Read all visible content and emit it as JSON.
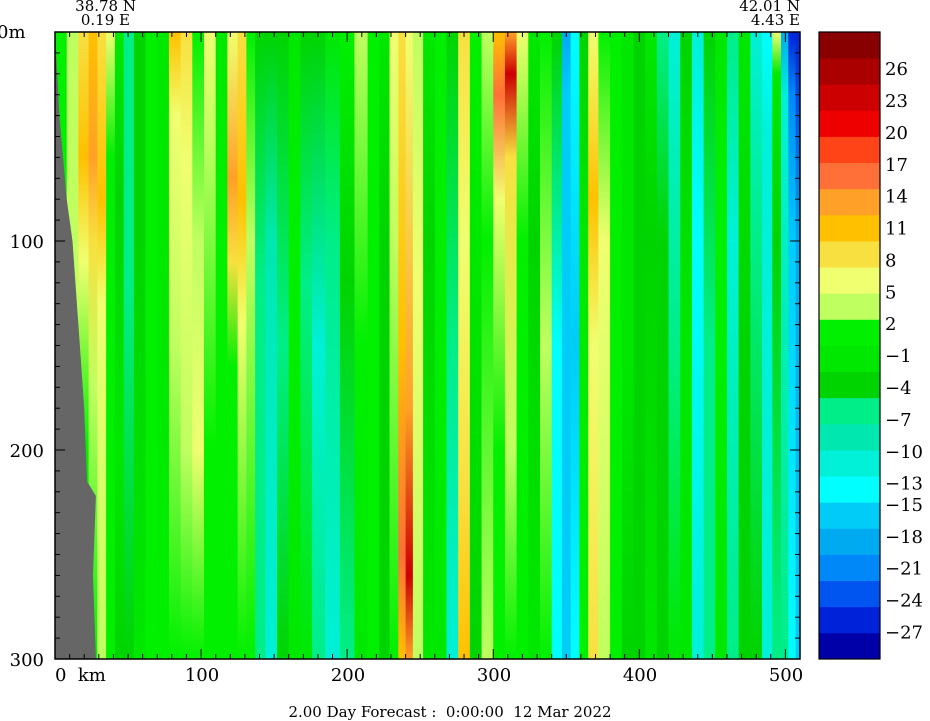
{
  "chart_data": {
    "type": "heatmap",
    "title": "",
    "xlabel": "",
    "ylabel": "",
    "footer": "2.00 Day Forecast :  0:00:00  12 Mar 2022",
    "start_lat": "38.78 N",
    "start_lon": "0.19 E",
    "end_lat": "42.01 N",
    "end_lon": "4.43 E",
    "x_unit": "km",
    "y_unit": "m",
    "xlim": [
      0,
      510
    ],
    "ylim": [
      0,
      300
    ],
    "y_inverted": true,
    "x_ticks": [
      0,
      100,
      200,
      300,
      400,
      500
    ],
    "x_tick_labels": [
      "0  km",
      "100",
      "200",
      "300",
      "400",
      "500"
    ],
    "y_ticks": [
      0,
      100,
      200,
      300
    ],
    "y_tick_labels": [
      "0m",
      "100",
      "200",
      "300"
    ],
    "colorbar": {
      "min": -29.5,
      "max": 29.5,
      "labels": [
        26,
        23,
        20,
        17,
        14,
        11,
        8,
        5,
        2,
        -1,
        -4,
        -7,
        -10,
        -13,
        -15,
        -18,
        -21,
        -24,
        -27
      ],
      "colors": [
        "#0000a8",
        "#0022d8",
        "#0055f0",
        "#0088f8",
        "#00aaf0",
        "#00ccf8",
        "#00ffff",
        "#00f0d8",
        "#00e8b0",
        "#00ee88",
        "#00d400",
        "#00e800",
        "#00f000",
        "#c0ff60",
        "#f0ff70",
        "#f8e040",
        "#ffc000",
        "#ffa028",
        "#ff7038",
        "#ff4418",
        "#ee0000",
        "#cc0000",
        "#aa0000",
        "#880000"
      ]
    },
    "bottom_land_km": [
      [
        0,
        0
      ],
      [
        3,
        40
      ],
      [
        8,
        80
      ],
      [
        12,
        100
      ],
      [
        16,
        140
      ],
      [
        20,
        180
      ],
      [
        22,
        215
      ],
      [
        28,
        222
      ],
      [
        26,
        260
      ],
      [
        28,
        300
      ]
    ],
    "columns": [
      {
        "x": 4,
        "profile": [
          [
            "0",
            2
          ],
          [
            "50",
            2
          ],
          [
            "300",
            2
          ]
        ]
      },
      {
        "x": 12,
        "profile": [
          [
            "0",
            3
          ],
          [
            "300",
            3
          ]
        ]
      },
      {
        "x": 20,
        "profile": [
          [
            "0",
            8
          ],
          [
            "60",
            12
          ],
          [
            "110",
            5
          ],
          [
            "200",
            2
          ],
          [
            "300",
            2
          ]
        ]
      },
      {
        "x": 26,
        "profile": [
          [
            "0",
            11
          ],
          [
            "60",
            14
          ],
          [
            "100",
            8
          ],
          [
            "170",
            3
          ],
          [
            "300",
            2
          ]
        ]
      },
      {
        "x": 32,
        "profile": [
          [
            "0",
            8
          ],
          [
            "80",
            11
          ],
          [
            "130",
            5
          ],
          [
            "300",
            3
          ]
        ]
      },
      {
        "x": 38,
        "profile": [
          [
            "0",
            5
          ],
          [
            "60",
            2
          ],
          [
            "200",
            2
          ],
          [
            "300",
            2
          ]
        ]
      },
      {
        "x": 44,
        "profile": [
          [
            "0",
            -2
          ],
          [
            "80",
            -4
          ],
          [
            "200",
            -2
          ],
          [
            "300",
            -4
          ]
        ]
      },
      {
        "x": 50,
        "profile": [
          [
            "0",
            -5
          ],
          [
            "120",
            -7
          ],
          [
            "300",
            -4
          ]
        ]
      },
      {
        "x": 58,
        "profile": [
          [
            "0",
            -3
          ],
          [
            "100",
            -4
          ],
          [
            "300",
            -2
          ]
        ]
      },
      {
        "x": 66,
        "profile": [
          [
            "0",
            2
          ],
          [
            "100",
            2
          ],
          [
            "300",
            2
          ]
        ]
      },
      {
        "x": 74,
        "profile": [
          [
            "0",
            -1
          ],
          [
            "150",
            -2
          ],
          [
            "300",
            0
          ]
        ]
      },
      {
        "x": 82,
        "profile": [
          [
            "0",
            11
          ],
          [
            "40",
            5
          ],
          [
            "150",
            3
          ],
          [
            "300",
            2
          ]
        ]
      },
      {
        "x": 90,
        "profile": [
          [
            "0",
            8
          ],
          [
            "60",
            5
          ],
          [
            "200",
            3
          ],
          [
            "300",
            2
          ]
        ]
      },
      {
        "x": 98,
        "profile": [
          [
            "0",
            2
          ],
          [
            "100",
            3
          ],
          [
            "200",
            5
          ],
          [
            "300",
            2
          ]
        ]
      },
      {
        "x": 106,
        "profile": [
          [
            "0",
            5
          ],
          [
            "50",
            3
          ],
          [
            "200",
            2
          ],
          [
            "300",
            1
          ]
        ]
      },
      {
        "x": 114,
        "profile": [
          [
            "0",
            -2
          ],
          [
            "100",
            2
          ],
          [
            "300",
            2
          ]
        ]
      },
      {
        "x": 122,
        "profile": [
          [
            "0",
            5
          ],
          [
            "70",
            14
          ],
          [
            "110",
            8
          ],
          [
            "160",
            2
          ],
          [
            "300",
            2
          ]
        ]
      },
      {
        "x": 128,
        "profile": [
          [
            "0",
            8
          ],
          [
            "80",
            11
          ],
          [
            "140",
            5
          ],
          [
            "300",
            2
          ]
        ]
      },
      {
        "x": 134,
        "profile": [
          [
            "0",
            2
          ],
          [
            "100",
            3
          ],
          [
            "300",
            2
          ]
        ]
      },
      {
        "x": 140,
        "profile": [
          [
            "0",
            -4
          ],
          [
            "120",
            -7
          ],
          [
            "300",
            -5
          ]
        ]
      },
      {
        "x": 148,
        "profile": [
          [
            "0",
            -3
          ],
          [
            "100",
            -8
          ],
          [
            "300",
            -10
          ]
        ]
      },
      {
        "x": 156,
        "profile": [
          [
            "0",
            -4
          ],
          [
            "150",
            -7
          ],
          [
            "300",
            -4
          ]
        ]
      },
      {
        "x": 164,
        "profile": [
          [
            "0",
            -1
          ],
          [
            "100",
            2
          ],
          [
            "300",
            -1
          ]
        ]
      },
      {
        "x": 172,
        "profile": [
          [
            "0",
            -4
          ],
          [
            "120",
            -5
          ],
          [
            "300",
            -2
          ]
        ]
      },
      {
        "x": 180,
        "profile": [
          [
            "0",
            -4
          ],
          [
            "150",
            -10
          ],
          [
            "300",
            -7
          ]
        ]
      },
      {
        "x": 190,
        "profile": [
          [
            "0",
            -1
          ],
          [
            "100",
            -7
          ],
          [
            "300",
            -10
          ]
        ]
      },
      {
        "x": 200,
        "profile": [
          [
            "0",
            2
          ],
          [
            "120",
            -3
          ],
          [
            "300",
            -5
          ]
        ]
      },
      {
        "x": 210,
        "profile": [
          [
            "0",
            3
          ],
          [
            "150",
            2
          ],
          [
            "300",
            -1
          ]
        ]
      },
      {
        "x": 218,
        "profile": [
          [
            "0",
            2
          ],
          [
            "100",
            2
          ],
          [
            "300",
            1
          ]
        ]
      },
      {
        "x": 226,
        "profile": [
          [
            "0",
            -2
          ],
          [
            "100",
            -4
          ],
          [
            "300",
            -4
          ]
        ]
      },
      {
        "x": 232,
        "profile": [
          [
            "0",
            5
          ],
          [
            "100",
            3
          ],
          [
            "300",
            2
          ]
        ]
      },
      {
        "x": 238,
        "profile": [
          [
            "0",
            8
          ],
          [
            "150",
            11
          ],
          [
            "250",
            17
          ],
          [
            "300",
            11
          ]
        ]
      },
      {
        "x": 242,
        "profile": [
          [
            "0",
            5
          ],
          [
            "180",
            14
          ],
          [
            "260",
            23
          ],
          [
            "300",
            14
          ]
        ]
      },
      {
        "x": 248,
        "profile": [
          [
            "0",
            3
          ],
          [
            "120",
            5
          ],
          [
            "300",
            3
          ]
        ]
      },
      {
        "x": 256,
        "profile": [
          [
            "0",
            -1
          ],
          [
            "100",
            -4
          ],
          [
            "300",
            -2
          ]
        ]
      },
      {
        "x": 264,
        "profile": [
          [
            "0",
            2
          ],
          [
            "100",
            2
          ],
          [
            "300",
            -1
          ]
        ]
      },
      {
        "x": 272,
        "profile": [
          [
            "0",
            -4
          ],
          [
            "150",
            -7
          ],
          [
            "300",
            -10
          ]
        ]
      },
      {
        "x": 280,
        "profile": [
          [
            "0",
            8
          ],
          [
            "100",
            5
          ],
          [
            "220",
            8
          ],
          [
            "300",
            11
          ]
        ]
      },
      {
        "x": 288,
        "profile": [
          [
            "0",
            2
          ],
          [
            "100",
            -1
          ],
          [
            "300",
            -4
          ]
        ]
      },
      {
        "x": 296,
        "profile": [
          [
            "0",
            3
          ],
          [
            "100",
            2
          ],
          [
            "300",
            3
          ]
        ]
      },
      {
        "x": 304,
        "profile": [
          [
            "0",
            11
          ],
          [
            "30",
            17
          ],
          [
            "80",
            5
          ],
          [
            "200",
            2
          ],
          [
            "300",
            2
          ]
        ]
      },
      {
        "x": 312,
        "profile": [
          [
            "0",
            14
          ],
          [
            "20",
            23
          ],
          [
            "60",
            8
          ],
          [
            "200",
            3
          ],
          [
            "300",
            2
          ]
        ]
      },
      {
        "x": 320,
        "profile": [
          [
            "0",
            5
          ],
          [
            "100",
            2
          ],
          [
            "300",
            2
          ]
        ]
      },
      {
        "x": 328,
        "profile": [
          [
            "0",
            -1
          ],
          [
            "100",
            -4
          ],
          [
            "300",
            -2
          ]
        ]
      },
      {
        "x": 336,
        "profile": [
          [
            "0",
            2
          ],
          [
            "150",
            3
          ],
          [
            "300",
            2
          ]
        ]
      },
      {
        "x": 344,
        "profile": [
          [
            "0",
            -4
          ],
          [
            "150",
            -13
          ],
          [
            "300",
            -13
          ]
        ]
      },
      {
        "x": 350,
        "profile": [
          [
            "0",
            -18
          ],
          [
            "30",
            -15
          ],
          [
            "150",
            -15
          ],
          [
            "300",
            -15
          ]
        ]
      },
      {
        "x": 356,
        "profile": [
          [
            "0",
            -13
          ],
          [
            "150",
            -15
          ],
          [
            "300",
            -13
          ]
        ]
      },
      {
        "x": 362,
        "profile": [
          [
            "0",
            -4
          ],
          [
            "100",
            -1
          ],
          [
            "300",
            2
          ]
        ]
      },
      {
        "x": 368,
        "profile": [
          [
            "0",
            5
          ],
          [
            "80",
            11
          ],
          [
            "150",
            5
          ],
          [
            "300",
            8
          ]
        ]
      },
      {
        "x": 376,
        "profile": [
          [
            "0",
            2
          ],
          [
            "100",
            5
          ],
          [
            "300",
            3
          ]
        ]
      },
      {
        "x": 384,
        "profile": [
          [
            "0",
            2
          ],
          [
            "100",
            2
          ],
          [
            "300",
            2
          ]
        ]
      },
      {
        "x": 392,
        "profile": [
          [
            "0",
            -1
          ],
          [
            "150",
            -1
          ],
          [
            "300",
            -3
          ]
        ]
      },
      {
        "x": 400,
        "profile": [
          [
            "0",
            -4
          ],
          [
            "150",
            -4
          ],
          [
            "300",
            -4
          ]
        ]
      },
      {
        "x": 408,
        "profile": [
          [
            "0",
            -2
          ],
          [
            "100",
            -4
          ],
          [
            "300",
            -1
          ]
        ]
      },
      {
        "x": 416,
        "profile": [
          [
            "0",
            -7
          ],
          [
            "100",
            -4
          ],
          [
            "300",
            -4
          ]
        ]
      },
      {
        "x": 424,
        "profile": [
          [
            "0",
            -10
          ],
          [
            "150",
            -7
          ],
          [
            "300",
            -2
          ]
        ]
      },
      {
        "x": 432,
        "profile": [
          [
            "0",
            -4
          ],
          [
            "150",
            -2
          ],
          [
            "300",
            -1
          ]
        ]
      },
      {
        "x": 440,
        "profile": [
          [
            "0",
            -10
          ],
          [
            "100",
            -13
          ],
          [
            "300",
            -10
          ]
        ]
      },
      {
        "x": 448,
        "profile": [
          [
            "0",
            -4
          ],
          [
            "150",
            -7
          ],
          [
            "300",
            -7
          ]
        ]
      },
      {
        "x": 456,
        "profile": [
          [
            "0",
            -1
          ],
          [
            "100",
            2
          ],
          [
            "300",
            -2
          ]
        ]
      },
      {
        "x": 464,
        "profile": [
          [
            "0",
            -7
          ],
          [
            "100",
            -10
          ],
          [
            "300",
            -7
          ]
        ]
      },
      {
        "x": 472,
        "profile": [
          [
            "0",
            -2
          ],
          [
            "150",
            -4
          ],
          [
            "300",
            -4
          ]
        ]
      },
      {
        "x": 480,
        "profile": [
          [
            "0",
            -10
          ],
          [
            "100",
            -7
          ],
          [
            "300",
            -4
          ]
        ]
      },
      {
        "x": 488,
        "profile": [
          [
            "0",
            -13
          ],
          [
            "50",
            -10
          ],
          [
            "300",
            -10
          ]
        ]
      },
      {
        "x": 494,
        "profile": [
          [
            "0",
            5
          ],
          [
            "20",
            -1
          ],
          [
            "100",
            -4
          ],
          [
            "300",
            -7
          ]
        ]
      },
      {
        "x": 500,
        "profile": [
          [
            "0",
            -18
          ],
          [
            "30",
            -10
          ],
          [
            "300",
            -7
          ]
        ]
      },
      {
        "x": 504,
        "profile": [
          [
            "0",
            -27
          ],
          [
            "30",
            -21
          ],
          [
            "100",
            -15
          ],
          [
            "300",
            -13
          ]
        ]
      },
      {
        "x": 510,
        "profile": [
          [
            "0",
            -27
          ],
          [
            "100",
            -18
          ],
          [
            "300",
            -15
          ]
        ]
      }
    ]
  }
}
